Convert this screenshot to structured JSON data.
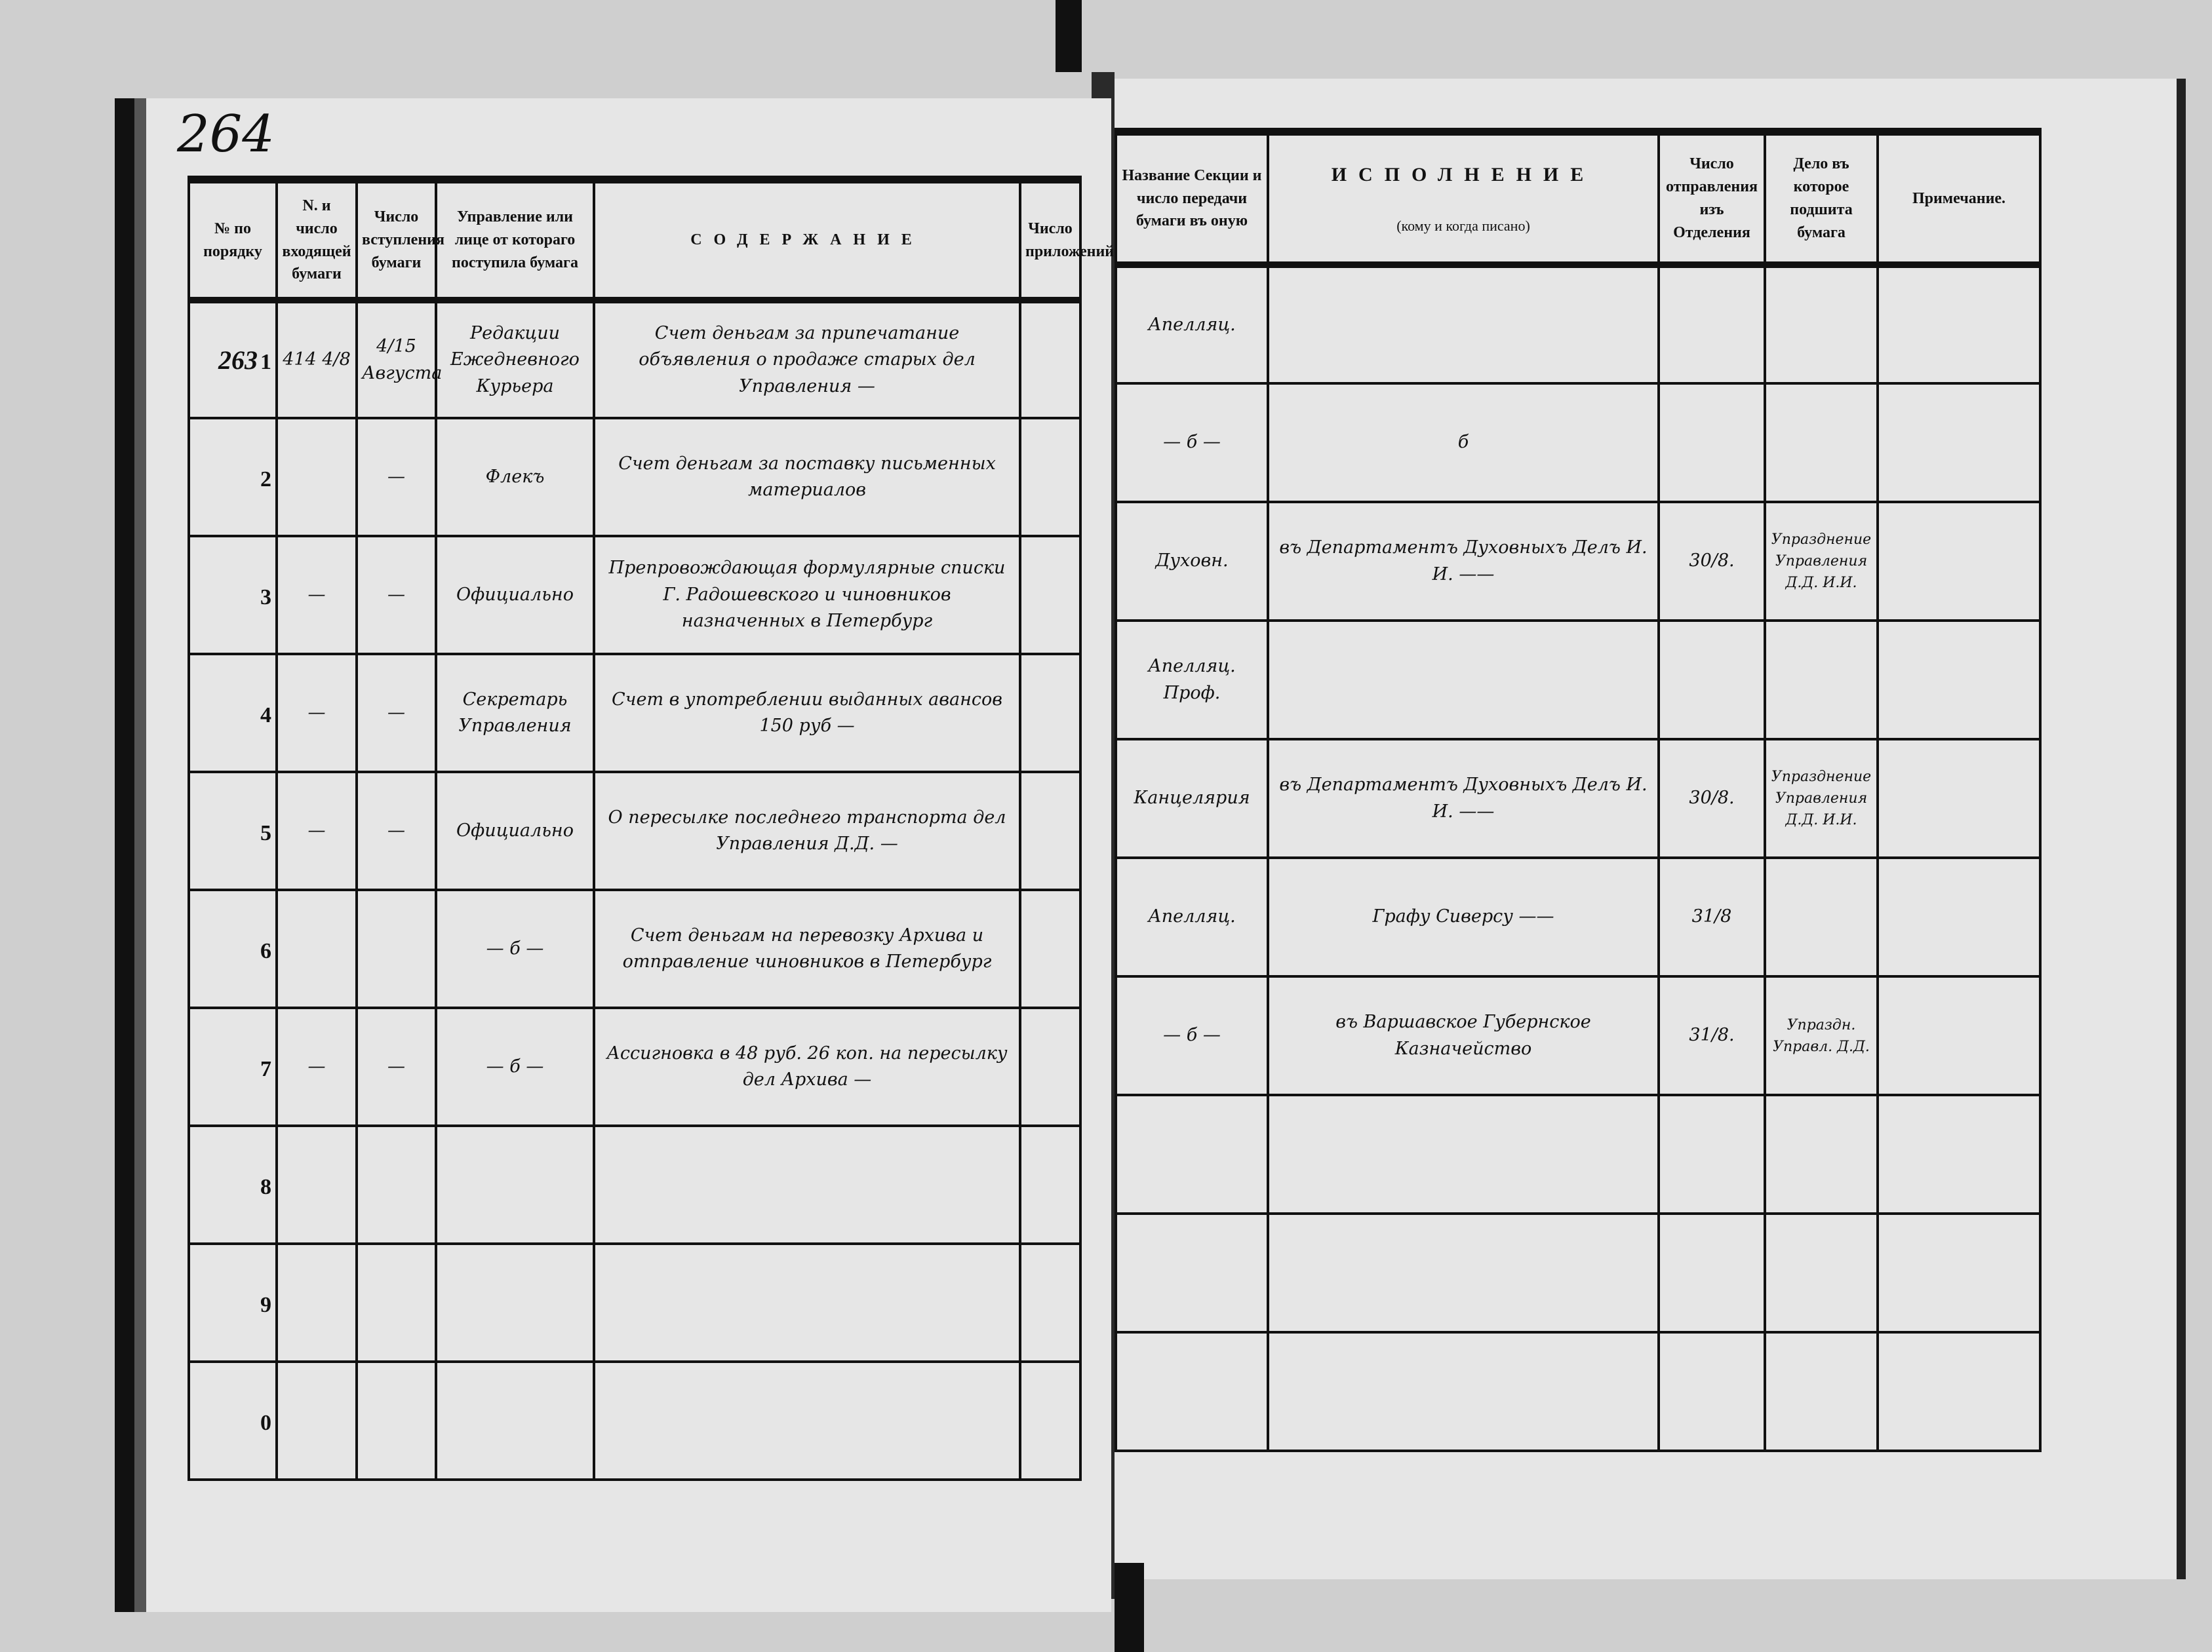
{
  "page_number": "264",
  "left": {
    "headers": [
      "№ по порядку",
      "N. и число входящей бумаги",
      "Число вступления бумаги",
      "Управление или лице от котораго поступила бумага",
      "СОДЕРЖАНИЕ",
      "Число приложений"
    ],
    "rows": [
      {
        "hand_no": "263",
        "no": "1",
        "incoming": "414 4/8",
        "date": "4/15 Августа",
        "from": "Редакции Ежедневного Курьера",
        "content": "Счет деньгам за припечатание объявления о продаже старых дел Управления —",
        "attachments": ""
      },
      {
        "hand_no": "",
        "no": "2",
        "incoming": "",
        "date": "—",
        "from": "Флекъ",
        "content": "Счет деньгам за поставку письменных материалов",
        "attachments": ""
      },
      {
        "hand_no": "",
        "no": "3",
        "incoming": "—",
        "date": "—",
        "from": "Официально",
        "content": "Препровождающая формулярные списки Г. Радошевского и чиновников назначенных в Петербург",
        "attachments": ""
      },
      {
        "hand_no": "",
        "no": "4",
        "incoming": "—",
        "date": "—",
        "from": "Секретарь Управления",
        "content": "Счет в употреблении выданных авансов 150 руб —",
        "attachments": ""
      },
      {
        "hand_no": "",
        "no": "5",
        "incoming": "—",
        "date": "—",
        "from": "Официально",
        "content": "О пересылке последнего транспорта дел Управления Д.Д. —",
        "attachments": ""
      },
      {
        "hand_no": "",
        "no": "6",
        "incoming": "",
        "date": "",
        "from": "— б —",
        "content": "Счет деньгам на перевозку Архива и отправление чиновников в Петербург",
        "attachments": ""
      },
      {
        "hand_no": "",
        "no": "7",
        "incoming": "—",
        "date": "—",
        "from": "— б —",
        "content": "Ассигновка в 48 руб. 26 коп. на пересылку дел Архива —",
        "attachments": ""
      },
      {
        "hand_no": "",
        "no": "8",
        "incoming": "",
        "date": "",
        "from": "",
        "content": "",
        "attachments": ""
      },
      {
        "hand_no": "",
        "no": "9",
        "incoming": "",
        "date": "",
        "from": "",
        "content": "",
        "attachments": ""
      },
      {
        "hand_no": "",
        "no": "0",
        "incoming": "",
        "date": "",
        "from": "",
        "content": "",
        "attachments": ""
      }
    ]
  },
  "right": {
    "headers": {
      "section": "Название Секции и число передачи бумаги въ оную",
      "execution_title": "ИСПОЛНЕНИЕ",
      "execution_sub": "(кому и когда писано)",
      "sent": "Число отправления изъ Отделения",
      "case": "Дело въ которое подшита бумага",
      "note": "Примечание."
    },
    "rows": [
      {
        "section": "Апелляц.",
        "execution": "",
        "sent": "",
        "case": "",
        "note": ""
      },
      {
        "section": "— б —",
        "execution": "б",
        "sent": "",
        "case": "",
        "note": ""
      },
      {
        "section": "Духовн.",
        "execution": "въ Департаментъ Духовныхъ Делъ И. И. ——",
        "sent": "30/8.",
        "case": "Упразднение Управления Д.Д. И.И.",
        "note": ""
      },
      {
        "section": "Апелляц. Проф.",
        "execution": "",
        "sent": "",
        "case": "",
        "note": ""
      },
      {
        "section": "Канцелярия",
        "execution": "въ Департаментъ Духовныхъ Делъ И. И. ——",
        "sent": "30/8.",
        "case": "Упразднение Управления Д.Д. И.И.",
        "note": ""
      },
      {
        "section": "Апелляц.",
        "execution": "Графу Сиверсу ——",
        "sent": "31/8",
        "case": "",
        "note": ""
      },
      {
        "section": "— б —",
        "execution": "въ Варшавское Губернское Казначейство",
        "sent": "31/8.",
        "case": "Упраздн. Управл. Д.Д.",
        "note": ""
      },
      {
        "section": "",
        "execution": "",
        "sent": "",
        "case": "",
        "note": ""
      },
      {
        "section": "",
        "execution": "",
        "sent": "",
        "case": "",
        "note": ""
      },
      {
        "section": "",
        "execution": "",
        "sent": "",
        "case": "",
        "note": ""
      }
    ]
  },
  "colors": {
    "paper": "#e6e6e6",
    "ink": "#111111",
    "binding": "#111111"
  }
}
